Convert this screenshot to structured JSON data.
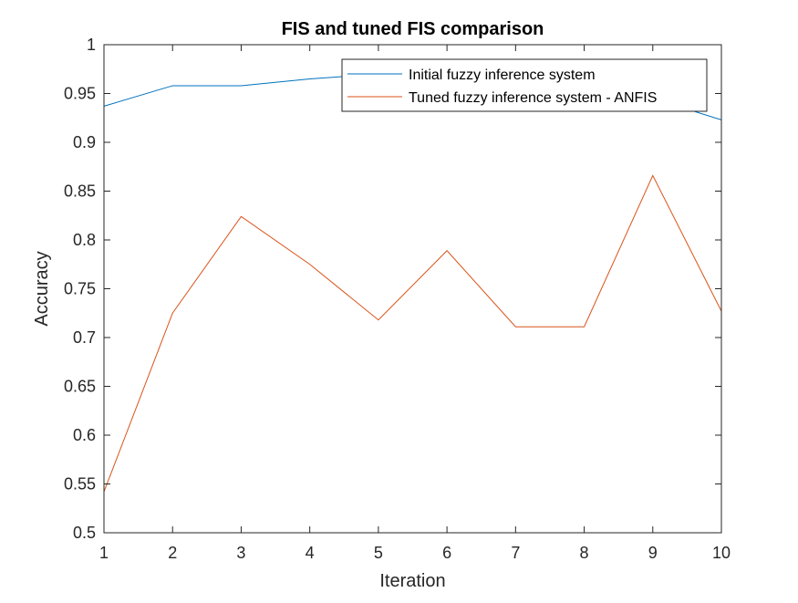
{
  "chart_data": {
    "type": "line",
    "title": "FIS and tuned FIS comparison",
    "xlabel": "Iteration",
    "ylabel": "Accuracy",
    "x": [
      1,
      2,
      3,
      4,
      5,
      6,
      7,
      8,
      9,
      10
    ],
    "xlim": [
      1,
      10
    ],
    "ylim": [
      0.5,
      1
    ],
    "xticks": [
      "1",
      "2",
      "3",
      "4",
      "5",
      "6",
      "7",
      "8",
      "9",
      "10"
    ],
    "yticks": [
      "0.5",
      "0.55",
      "0.6",
      "0.65",
      "0.7",
      "0.75",
      "0.8",
      "0.85",
      "0.9",
      "0.95",
      "1"
    ],
    "grid": false,
    "legend_position": "top-right",
    "series": [
      {
        "name": "Initial fuzzy inference system",
        "color": "#0072BD",
        "values": [
          0.937,
          0.958,
          0.958,
          0.965,
          0.97,
          0.972,
          0.975,
          0.985,
          0.945,
          0.923
        ]
      },
      {
        "name": "Tuned fuzzy inference system - ANFIS",
        "color": "#D95319",
        "values": [
          0.542,
          0.725,
          0.824,
          0.775,
          0.718,
          0.789,
          0.711,
          0.711,
          0.866,
          0.727
        ]
      }
    ]
  }
}
